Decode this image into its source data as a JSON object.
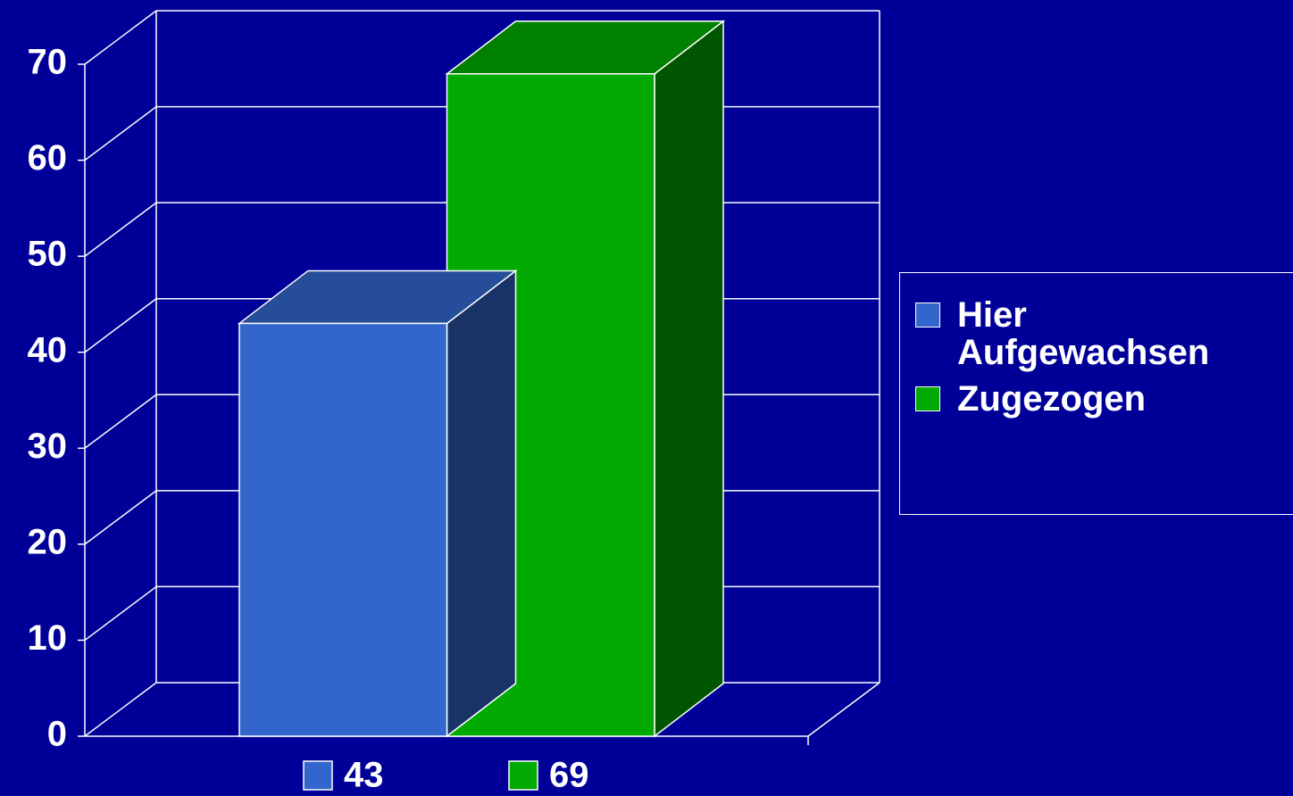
{
  "chart_data": {
    "type": "bar",
    "categories": [
      null
    ],
    "series": [
      {
        "name": "Hier Aufgewachsen",
        "color": "#3366cc",
        "values": [
          43
        ]
      },
      {
        "name": "Zugezogen",
        "color": "#00aa00",
        "values": [
          69
        ]
      }
    ],
    "ylim": [
      0,
      70
    ],
    "yticks": [
      0,
      10,
      20,
      30,
      40,
      50,
      60,
      70
    ],
    "grid": true,
    "legend": "right"
  }
}
